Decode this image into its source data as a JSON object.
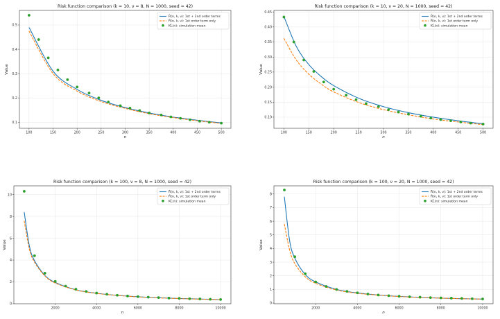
{
  "chart_data": [
    {
      "type": "line",
      "title": "Risk function comparison  (k = 10,  ν = 8,  N = 1000,  seed = 42)",
      "xlabel": "n",
      "ylabel": "Value",
      "xlim": [
        80,
        520
      ],
      "ylim": [
        0.075,
        0.56
      ],
      "xticks": [
        100,
        150,
        200,
        250,
        300,
        350,
        400,
        450,
        500
      ],
      "xtick_labels": [
        "100",
        "150",
        "200",
        "250",
        "300",
        "350",
        "400",
        "450",
        "500"
      ],
      "yticks": [
        0.1,
        0.2,
        0.3,
        0.4,
        0.5
      ],
      "ytick_labels": [
        "0.1",
        "0.2",
        "0.3",
        "0.4",
        "0.5"
      ],
      "grid": true,
      "legend_position": "top-right",
      "series": [
        {
          "name": "R̃(n, k, ν): 1st + 2nd order terms",
          "style": "solid",
          "color": "#1f77b4",
          "x": [
            100,
            150,
            200,
            250,
            300,
            350,
            400,
            450,
            500
          ],
          "y": [
            0.49,
            0.31,
            0.235,
            0.19,
            0.16,
            0.138,
            0.121,
            0.108,
            0.097
          ]
        },
        {
          "name": "R̃(n, k, ν): 1st order term only",
          "style": "dashed",
          "color": "#ff7f0e",
          "x": [
            100,
            150,
            200,
            250,
            300,
            350,
            400,
            450,
            500
          ],
          "y": [
            0.475,
            0.3,
            0.228,
            0.185,
            0.157,
            0.135,
            0.119,
            0.106,
            0.095
          ]
        },
        {
          "name": "KL̄(n): simulation mean",
          "style": "points",
          "color": "#2ca02c",
          "x": [
            100,
            120,
            140,
            160,
            180,
            200,
            225,
            245,
            265,
            290,
            310,
            330,
            350,
            375,
            395,
            415,
            435,
            455,
            475,
            500
          ],
          "y": [
            0.54,
            0.44,
            0.365,
            0.315,
            0.275,
            0.245,
            0.22,
            0.2,
            0.183,
            0.168,
            0.158,
            0.148,
            0.138,
            0.13,
            0.122,
            0.116,
            0.11,
            0.104,
            0.1,
            0.096
          ]
        }
      ]
    },
    {
      "type": "line",
      "title": "Risk function comparison  (k = 10,  ν = 20,  N = 1000,  seed = 42)",
      "xlabel": "n",
      "ylabel": "Value",
      "xlim": [
        80,
        520
      ],
      "ylim": [
        0.063,
        0.455
      ],
      "xticks": [
        100,
        150,
        200,
        250,
        300,
        350,
        400,
        450,
        500
      ],
      "xtick_labels": [
        "100",
        "150",
        "200",
        "250",
        "300",
        "350",
        "400",
        "450",
        "500"
      ],
      "yticks": [
        0.1,
        0.15,
        0.2,
        0.25,
        0.3,
        0.35,
        0.4,
        0.45
      ],
      "ytick_labels": [
        "0.10",
        "0.15",
        "0.20",
        "0.25",
        "0.30",
        "0.35",
        "0.40",
        "0.45"
      ],
      "grid": true,
      "legend_position": "top-right",
      "series": [
        {
          "name": "R̃(n, k, ν): 1st + 2nd order terms",
          "style": "solid",
          "color": "#1f77b4",
          "x": [
            100,
            125,
            150,
            175,
            200,
            250,
            300,
            350,
            400,
            450,
            500
          ],
          "y": [
            0.435,
            0.335,
            0.275,
            0.235,
            0.205,
            0.163,
            0.135,
            0.115,
            0.1,
            0.088,
            0.078
          ]
        },
        {
          "name": "R̃(n, k, ν): 1st order term only",
          "style": "dashed",
          "color": "#ff7f0e",
          "x": [
            100,
            125,
            150,
            175,
            200,
            250,
            300,
            350,
            400,
            450,
            500
          ],
          "y": [
            0.362,
            0.29,
            0.243,
            0.21,
            0.184,
            0.149,
            0.125,
            0.108,
            0.094,
            0.084,
            0.075
          ]
        },
        {
          "name": "KL̄(n): simulation mean",
          "style": "points",
          "color": "#2ca02c",
          "x": [
            100,
            120,
            140,
            160,
            180,
            200,
            225,
            245,
            265,
            290,
            310,
            330,
            350,
            375,
            395,
            415,
            435,
            455,
            475,
            500
          ],
          "y": [
            0.433,
            0.35,
            0.29,
            0.252,
            0.217,
            0.193,
            0.173,
            0.158,
            0.145,
            0.135,
            0.125,
            0.117,
            0.11,
            0.103,
            0.097,
            0.092,
            0.088,
            0.084,
            0.08,
            0.077
          ]
        }
      ]
    },
    {
      "type": "line",
      "title": "Risk function comparison  (k = 100,  ν = 8,  N = 1000,  seed = 42)",
      "xlabel": "n",
      "ylabel": "Value",
      "xlim": [
        0,
        10500
      ],
      "ylim": [
        0,
        10.8
      ],
      "xticks": [
        2000,
        4000,
        6000,
        8000,
        10000
      ],
      "xtick_labels": [
        "2000",
        "4000",
        "6000",
        "8000",
        "10000"
      ],
      "yticks": [
        0,
        2,
        4,
        6,
        8,
        10
      ],
      "ytick_labels": [
        "0",
        "2",
        "4",
        "6",
        "8",
        "10"
      ],
      "grid": true,
      "legend_position": "top-right",
      "series": [
        {
          "name": "R̃(n, k, ν): 1st + 2nd order terms",
          "style": "solid",
          "color": "#1f77b4",
          "x": [
            500,
            750,
            1000,
            1500,
            2000,
            3000,
            4000,
            5000,
            6000,
            7000,
            8000,
            9000,
            10000
          ],
          "y": [
            8.4,
            5.3,
            3.95,
            2.6,
            1.95,
            1.28,
            0.96,
            0.77,
            0.64,
            0.55,
            0.48,
            0.43,
            0.38
          ]
        },
        {
          "name": "R̃(n, k, ν): 1st order term only",
          "style": "dashed",
          "color": "#ff7f0e",
          "x": [
            500,
            750,
            1000,
            1500,
            2000,
            3000,
            4000,
            5000,
            6000,
            7000,
            8000,
            9000,
            10000
          ],
          "y": [
            7.6,
            5.0,
            3.8,
            2.55,
            1.9,
            1.26,
            0.95,
            0.76,
            0.63,
            0.54,
            0.47,
            0.42,
            0.38
          ]
        },
        {
          "name": "KL̄(n): simulation mean",
          "style": "points",
          "color": "#2ca02c",
          "x": [
            500,
            1000,
            1500,
            2000,
            2500,
            3000,
            3500,
            4000,
            4500,
            5000,
            5500,
            6000,
            6500,
            7000,
            7500,
            8000,
            8500,
            9000,
            9500,
            10000
          ],
          "y": [
            10.3,
            4.4,
            2.8,
            2.05,
            1.62,
            1.33,
            1.13,
            0.98,
            0.87,
            0.78,
            0.71,
            0.65,
            0.6,
            0.56,
            0.52,
            0.49,
            0.46,
            0.44,
            0.41,
            0.39
          ]
        }
      ]
    },
    {
      "type": "line",
      "title": "Risk function comparison  (k = 100,  ν = 20,  N = 1000,  seed = 42)",
      "xlabel": "n",
      "ylabel": "Value",
      "xlim": [
        0,
        10500
      ],
      "ylim": [
        -0.05,
        8.6
      ],
      "xticks": [
        2000,
        4000,
        6000,
        8000,
        10000
      ],
      "xtick_labels": [
        "2000",
        "4000",
        "6000",
        "8000",
        "10000"
      ],
      "yticks": [
        0,
        1,
        2,
        3,
        4,
        5,
        6,
        7,
        8
      ],
      "ytick_labels": [
        "0",
        "1",
        "2",
        "3",
        "4",
        "5",
        "6",
        "7",
        "8"
      ],
      "grid": true,
      "legend_position": "top-right",
      "series": [
        {
          "name": "R̃(n, k, ν): 1st + 2nd order terms",
          "style": "solid",
          "color": "#1f77b4",
          "x": [
            500,
            750,
            1000,
            1500,
            2000,
            3000,
            4000,
            5000,
            6000,
            7000,
            8000,
            9000,
            10000
          ],
          "y": [
            7.8,
            4.6,
            3.3,
            2.1,
            1.55,
            1.0,
            0.74,
            0.59,
            0.49,
            0.42,
            0.36,
            0.32,
            0.29
          ]
        },
        {
          "name": "R̃(n, k, ν): 1st order term only",
          "style": "dashed",
          "color": "#ff7f0e",
          "x": [
            500,
            750,
            1000,
            1500,
            2000,
            3000,
            4000,
            5000,
            6000,
            7000,
            8000,
            9000,
            10000
          ],
          "y": [
            5.8,
            3.9,
            2.9,
            1.93,
            1.45,
            0.96,
            0.72,
            0.58,
            0.48,
            0.41,
            0.36,
            0.32,
            0.29
          ]
        },
        {
          "name": "KL̄(n): simulation mean",
          "style": "points",
          "color": "#2ca02c",
          "x": [
            500,
            1000,
            1500,
            2000,
            2500,
            3000,
            3500,
            4000,
            4500,
            5000,
            5500,
            6000,
            6500,
            7000,
            7500,
            8000,
            8500,
            9000,
            9500,
            10000
          ],
          "y": [
            8.3,
            3.4,
            2.15,
            1.55,
            1.22,
            1.0,
            0.86,
            0.75,
            0.66,
            0.59,
            0.54,
            0.5,
            0.46,
            0.43,
            0.4,
            0.38,
            0.36,
            0.34,
            0.32,
            0.3
          ]
        }
      ]
    }
  ]
}
